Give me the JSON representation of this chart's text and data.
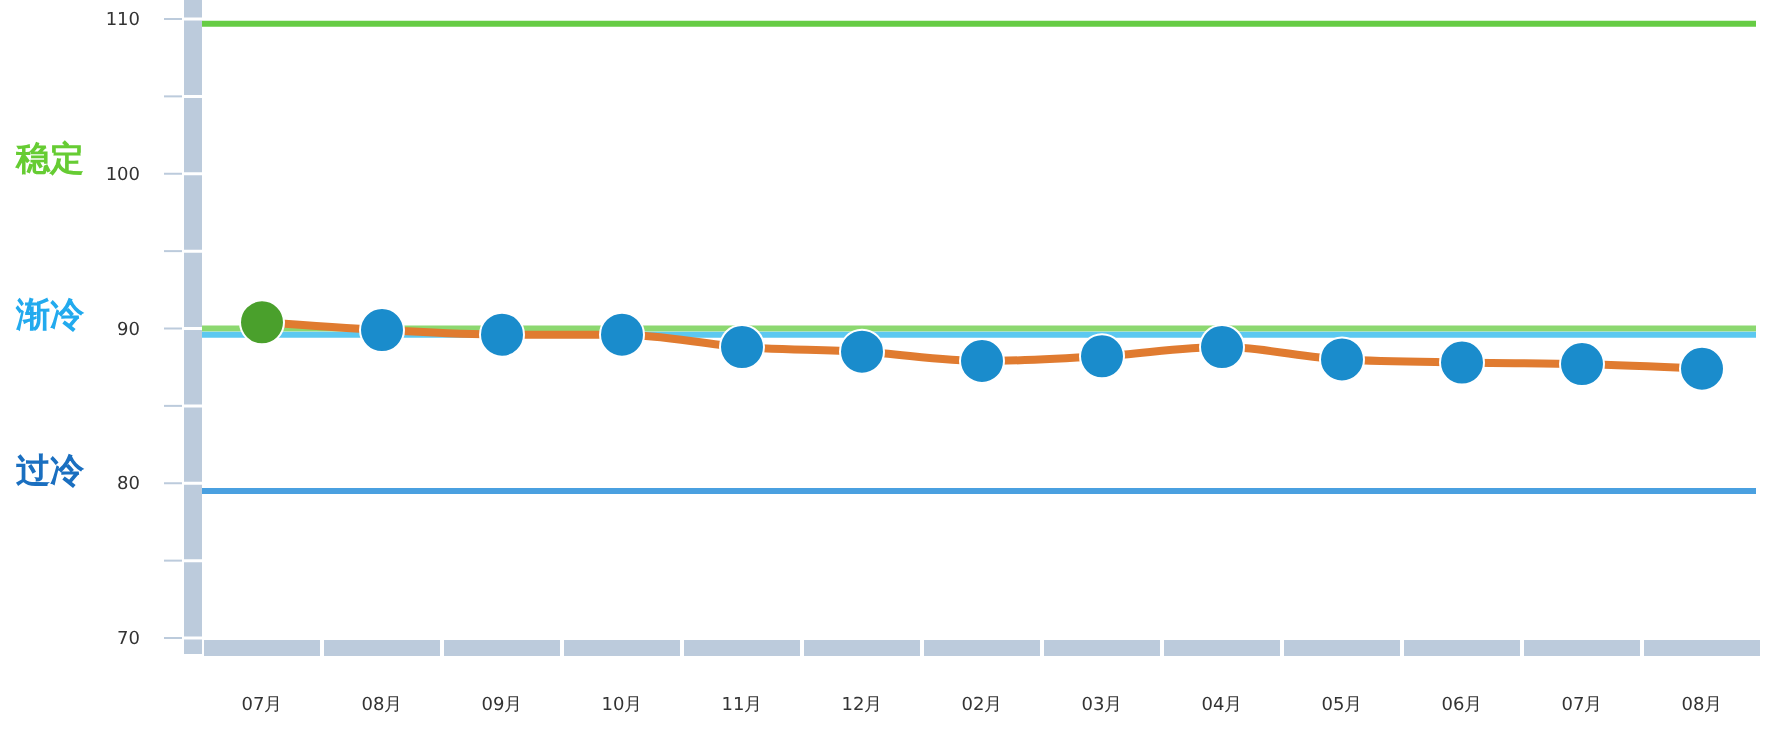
{
  "chart_data": {
    "type": "line",
    "categories": [
      "07月",
      "08月",
      "09月",
      "10月",
      "11月",
      "12月",
      "02月",
      "03月",
      "04月",
      "05月",
      "06月",
      "07月",
      "08月"
    ],
    "series": [
      {
        "color": "#e07b30",
        "colors": [
          "#4aa02c",
          "#1a8ccc",
          "#1a8ccc",
          "#1a8ccc",
          "#1a8ccc",
          "#1a8ccc",
          "#1a8ccc",
          "#1a8ccc",
          "#1a8ccc",
          "#1a8ccc",
          "#1a8ccc",
          "#1a8ccc",
          "#1a8ccc"
        ],
        "values": [
          90.4,
          89.9,
          89.6,
          89.6,
          88.8,
          88.5,
          87.9,
          88.2,
          88.8,
          88.0,
          87.8,
          87.7,
          87.4
        ]
      }
    ],
    "ylim": [
      70,
      110
    ],
    "yticks": [
      70,
      {
        "value": 75,
        "label": null
      },
      80,
      {
        "value": 85,
        "label": null
      },
      90,
      {
        "value": 95,
        "label": null
      },
      100,
      {
        "value": 105,
        "label": null
      },
      110
    ],
    "ref_lines": [
      {
        "axis": "y",
        "value": 109.7,
        "color": "#66cc44"
      },
      {
        "axis": "y",
        "value": 90,
        "color": "#8cd870"
      },
      {
        "axis": "y",
        "value": 89.6,
        "color": "#5cc8f0"
      },
      {
        "axis": "y",
        "value": 79.5,
        "color": "#4aa0e0"
      }
    ],
    "annotations": [
      "稳定",
      "渐冷",
      "过冷"
    ],
    "marker": "circle"
  }
}
